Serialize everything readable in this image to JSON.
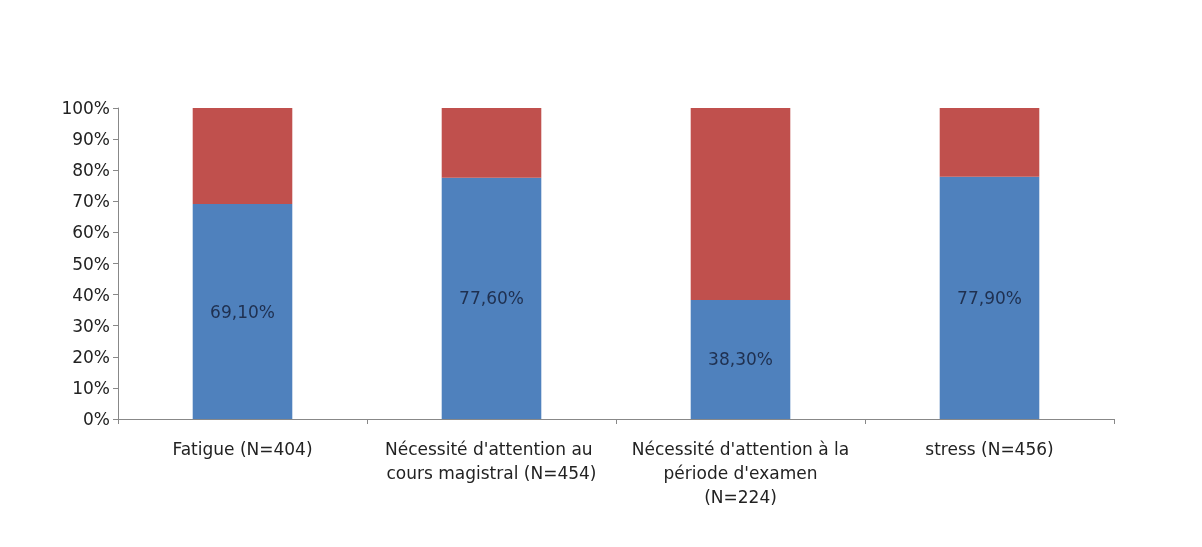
{
  "chart_data": {
    "type": "bar",
    "stacked": true,
    "categories": [
      "Fatigue (N=404)",
      "Nécessité d'attention au cours magistral (N=454)",
      "Nécessité d'attention à la période d'examen (N=224)",
      "stress (N=456)"
    ],
    "series": [
      {
        "color": "#4f81bd",
        "values": [
          69.1,
          77.6,
          38.3,
          77.9
        ],
        "value_labels": [
          "69,10%",
          "77,60%",
          "38,30%",
          "77,90%"
        ]
      },
      {
        "color": "#c0504d",
        "values": [
          30.9,
          22.4,
          61.7,
          22.1
        ]
      }
    ],
    "ylim": [
      0,
      100
    ],
    "yticks": [
      {
        "value": 0,
        "label": "0%"
      },
      {
        "value": 10,
        "label": "10%"
      },
      {
        "value": 20,
        "label": "20%"
      },
      {
        "value": 30,
        "label": "30%"
      },
      {
        "value": 40,
        "label": "40%"
      },
      {
        "value": 50,
        "label": "50%"
      },
      {
        "value": 60,
        "label": "60%"
      },
      {
        "value": 70,
        "label": "70%"
      },
      {
        "value": 80,
        "label": "80%"
      },
      {
        "value": 90,
        "label": "90%"
      },
      {
        "value": 100,
        "label": "100%"
      }
    ],
    "grid": false
  }
}
